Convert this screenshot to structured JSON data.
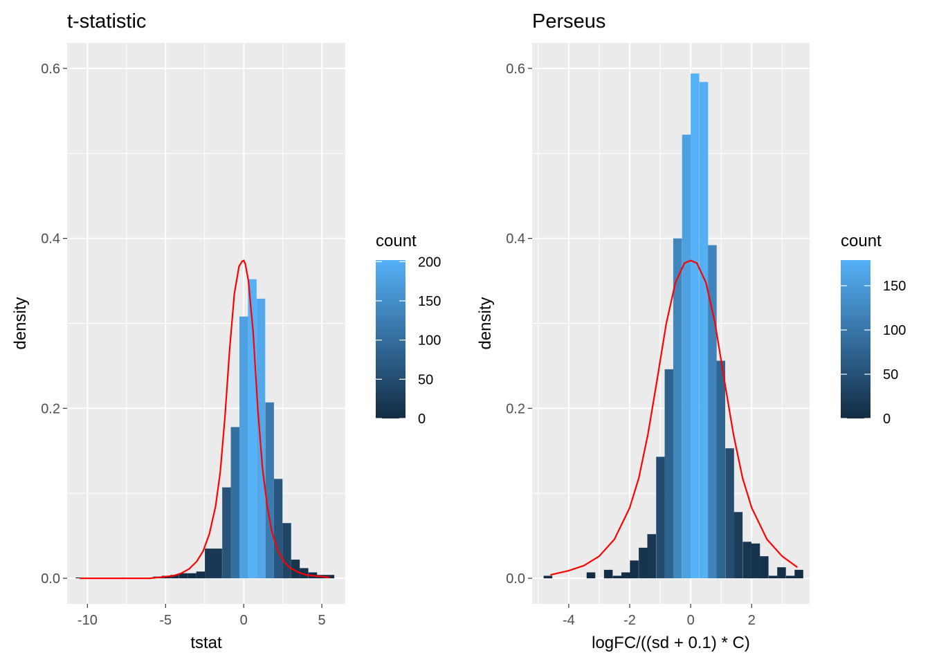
{
  "chart_data": [
    {
      "type": "bar",
      "title": "t-statistic",
      "xlabel": "tstat",
      "ylabel": "density",
      "xlim": [
        -11.3,
        6.5
      ],
      "ylim": [
        -0.03,
        0.63
      ],
      "x_ticks": [
        -10,
        -5,
        0,
        5
      ],
      "x_tick_labels": [
        "-10",
        "-5",
        "0",
        "5"
      ],
      "y_ticks": [
        0.0,
        0.2,
        0.4,
        0.6
      ],
      "y_tick_labels": [
        "0.0",
        "0.2",
        "0.4",
        "0.6"
      ],
      "grid": true,
      "bin_width": 0.55,
      "bins": [
        {
          "x": -10.48,
          "density": 0.001,
          "count": 0
        },
        {
          "x": -5.52,
          "density": 0.002,
          "count": 1
        },
        {
          "x": -4.97,
          "density": 0.003,
          "count": 1
        },
        {
          "x": -4.42,
          "density": 0.004,
          "count": 2
        },
        {
          "x": -3.86,
          "density": 0.006,
          "count": 3
        },
        {
          "x": -3.31,
          "density": 0.006,
          "count": 3
        },
        {
          "x": -2.76,
          "density": 0.008,
          "count": 4
        },
        {
          "x": -2.21,
          "density": 0.035,
          "count": 20
        },
        {
          "x": -1.66,
          "density": 0.035,
          "count": 20
        },
        {
          "x": -1.1,
          "density": 0.107,
          "count": 61
        },
        {
          "x": -0.55,
          "density": 0.178,
          "count": 102
        },
        {
          "x": 0.0,
          "density": 0.308,
          "count": 177
        },
        {
          "x": 0.55,
          "density": 0.352,
          "count": 202
        },
        {
          "x": 1.1,
          "density": 0.329,
          "count": 189
        },
        {
          "x": 1.66,
          "density": 0.207,
          "count": 119
        },
        {
          "x": 2.21,
          "density": 0.117,
          "count": 67
        },
        {
          "x": 2.76,
          "density": 0.065,
          "count": 37
        },
        {
          "x": 3.31,
          "density": 0.022,
          "count": 13
        },
        {
          "x": 3.86,
          "density": 0.012,
          "count": 7
        },
        {
          "x": 4.42,
          "density": 0.007,
          "count": 4
        },
        {
          "x": 4.97,
          "density": 0.004,
          "count": 2
        },
        {
          "x": 5.52,
          "density": 0.004,
          "count": 2
        }
      ],
      "density_curve": {
        "color": "#ff0000",
        "x": [
          -10.5,
          -8,
          -6,
          -5,
          -4.5,
          -4,
          -3.5,
          -3,
          -2.6,
          -2.2,
          -1.8,
          -1.5,
          -1.2,
          -0.9,
          -0.6,
          -0.3,
          -0.1,
          0,
          0.1,
          0.3,
          0.6,
          0.9,
          1.2,
          1.5,
          1.8,
          2.2,
          2.6,
          3,
          3.5,
          4,
          4.5,
          5,
          5.5
        ],
        "y": [
          0.0,
          0.0,
          0.0,
          0.002,
          0.003,
          0.006,
          0.011,
          0.02,
          0.032,
          0.052,
          0.085,
          0.125,
          0.19,
          0.27,
          0.335,
          0.367,
          0.373,
          0.374,
          0.37,
          0.35,
          0.29,
          0.2,
          0.13,
          0.085,
          0.055,
          0.032,
          0.019,
          0.012,
          0.007,
          0.004,
          0.003,
          0.002,
          0.001
        ]
      },
      "legend": {
        "title": "count",
        "placement": "right",
        "tick_values": [
          0,
          50,
          100,
          150,
          200
        ],
        "tick_labels": [
          "0",
          "50",
          "100",
          "150",
          "200"
        ],
        "range": [
          0,
          202
        ],
        "low_color": "#132b43",
        "high_color": "#56b1f7"
      }
    },
    {
      "type": "bar",
      "title": "Perseus",
      "xlabel": "logFC/((sd + 0.1) * C)",
      "ylabel": "density",
      "xlim": [
        -5.2,
        3.9
      ],
      "ylim": [
        -0.03,
        0.63
      ],
      "x_ticks": [
        -4,
        -2,
        0,
        2
      ],
      "x_tick_labels": [
        "-4",
        "-2",
        "0",
        "2"
      ],
      "y_ticks": [
        0.0,
        0.2,
        0.4,
        0.6
      ],
      "y_tick_labels": [
        "0.0",
        "0.2",
        "0.4",
        "0.6"
      ],
      "grid": true,
      "bin_width": 0.284,
      "bins": [
        {
          "x": -4.68,
          "density": 0.003,
          "count": 1
        },
        {
          "x": -3.27,
          "density": 0.007,
          "count": 2
        },
        {
          "x": -2.7,
          "density": 0.01,
          "count": 3
        },
        {
          "x": -2.41,
          "density": 0.003,
          "count": 1
        },
        {
          "x": -2.13,
          "density": 0.007,
          "count": 2
        },
        {
          "x": -1.85,
          "density": 0.021,
          "count": 6
        },
        {
          "x": -1.56,
          "density": 0.036,
          "count": 11
        },
        {
          "x": -1.28,
          "density": 0.052,
          "count": 16
        },
        {
          "x": -0.99,
          "density": 0.143,
          "count": 43
        },
        {
          "x": -0.71,
          "density": 0.246,
          "count": 74
        },
        {
          "x": -0.43,
          "density": 0.4,
          "count": 120
        },
        {
          "x": -0.14,
          "density": 0.522,
          "count": 157
        },
        {
          "x": 0.14,
          "density": 0.594,
          "count": 179
        },
        {
          "x": 0.43,
          "density": 0.584,
          "count": 176
        },
        {
          "x": 0.71,
          "density": 0.392,
          "count": 118
        },
        {
          "x": 0.99,
          "density": 0.256,
          "count": 77
        },
        {
          "x": 1.28,
          "density": 0.153,
          "count": 46
        },
        {
          "x": 1.56,
          "density": 0.078,
          "count": 23
        },
        {
          "x": 1.85,
          "density": 0.043,
          "count": 13
        },
        {
          "x": 2.13,
          "density": 0.041,
          "count": 12
        },
        {
          "x": 2.41,
          "density": 0.026,
          "count": 8
        },
        {
          "x": 2.7,
          "density": 0.003,
          "count": 1
        },
        {
          "x": 2.98,
          "density": 0.013,
          "count": 4
        },
        {
          "x": 3.27,
          "density": 0.003,
          "count": 1
        },
        {
          "x": 3.55,
          "density": 0.01,
          "count": 3
        }
      ],
      "density_curve": {
        "color": "#ff0000",
        "x": [
          -4.6,
          -4,
          -3.5,
          -3,
          -2.5,
          -2,
          -1.7,
          -1.4,
          -1.1,
          -0.8,
          -0.5,
          -0.2,
          0,
          0.2,
          0.5,
          0.8,
          1.1,
          1.4,
          1.7,
          2,
          2.5,
          3,
          3.5
        ],
        "y": [
          0.004,
          0.009,
          0.015,
          0.026,
          0.046,
          0.083,
          0.118,
          0.17,
          0.234,
          0.3,
          0.348,
          0.371,
          0.374,
          0.371,
          0.348,
          0.3,
          0.234,
          0.17,
          0.118,
          0.083,
          0.046,
          0.026,
          0.013
        ]
      },
      "legend": {
        "title": "count",
        "placement": "right",
        "tick_values": [
          0,
          50,
          100,
          150
        ],
        "tick_labels": [
          "0",
          "50",
          "100",
          "150"
        ],
        "range": [
          0,
          179
        ],
        "low_color": "#132b43",
        "high_color": "#56b1f7"
      }
    }
  ]
}
